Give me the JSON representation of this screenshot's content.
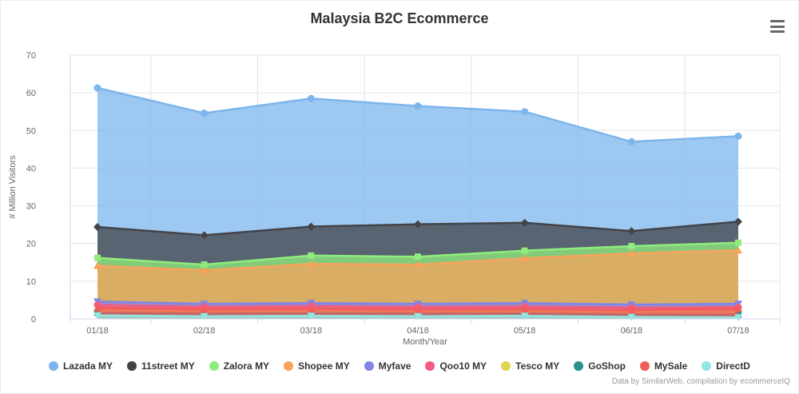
{
  "title": "Malaysia B2C Ecommerce",
  "menu_icon": "hamburger-icon",
  "credits": "Data by SimilarWeb, compilation by ecommerceIQ",
  "chart_data": {
    "type": "area",
    "title": "Malaysia B2C Ecommerce",
    "xlabel": "Month/Year",
    "ylabel": "# Million Visitors",
    "ylim": [
      0,
      70
    ],
    "y_ticks": [
      0,
      10,
      20,
      30,
      40,
      50,
      60,
      70
    ],
    "categories": [
      "01/18",
      "02/18",
      "03/18",
      "04/18",
      "05/18",
      "06/18",
      "07/18"
    ],
    "grid": true,
    "legend_position": "bottom",
    "fill_opacity": 0.75,
    "series": [
      {
        "name": "Lazada MY",
        "color": "#7cb5ec",
        "marker": "circle",
        "values": [
          61.3,
          54.6,
          58.5,
          56.5,
          55.0,
          47.0,
          48.5
        ]
      },
      {
        "name": "11street MY",
        "color": "#434348",
        "marker": "diamond",
        "values": [
          24.4,
          22.2,
          24.5,
          25.1,
          25.5,
          23.3,
          25.8
        ]
      },
      {
        "name": "Zalora MY",
        "color": "#90ed7d",
        "marker": "square",
        "values": [
          16.2,
          14.4,
          16.8,
          16.5,
          18.1,
          19.3,
          20.2
        ]
      },
      {
        "name": "Shopee MY",
        "color": "#f7a35c",
        "marker": "triangle",
        "values": [
          14.1,
          12.9,
          14.6,
          14.4,
          16.1,
          17.4,
          18.2
        ]
      },
      {
        "name": "Myfave",
        "color": "#8085e9",
        "marker": "triangle-down",
        "values": [
          4.6,
          4.0,
          4.2,
          4.0,
          4.2,
          3.8,
          4.0
        ]
      },
      {
        "name": "Qoo10 MY",
        "color": "#f15c80",
        "marker": "circle",
        "values": [
          3.7,
          3.2,
          3.4,
          3.2,
          3.3,
          3.0,
          3.1
        ]
      },
      {
        "name": "Tesco MY",
        "color": "#e4d354",
        "marker": "diamond",
        "values": [
          2.3,
          2.0,
          2.1,
          2.0,
          2.1,
          1.9,
          2.0
        ]
      },
      {
        "name": "GoShop",
        "color": "#2b908f",
        "marker": "square",
        "values": [
          1.6,
          1.4,
          1.5,
          1.4,
          1.4,
          1.2,
          1.1
        ]
      },
      {
        "name": "MySale",
        "color": "#f45b5b",
        "marker": "triangle",
        "values": [
          2.9,
          2.6,
          2.7,
          2.5,
          2.6,
          2.3,
          2.8
        ]
      },
      {
        "name": "DirectD",
        "color": "#91e8e1",
        "marker": "triangle-down",
        "values": [
          0.9,
          0.7,
          0.8,
          0.7,
          0.8,
          0.5,
          0.4
        ]
      }
    ]
  }
}
